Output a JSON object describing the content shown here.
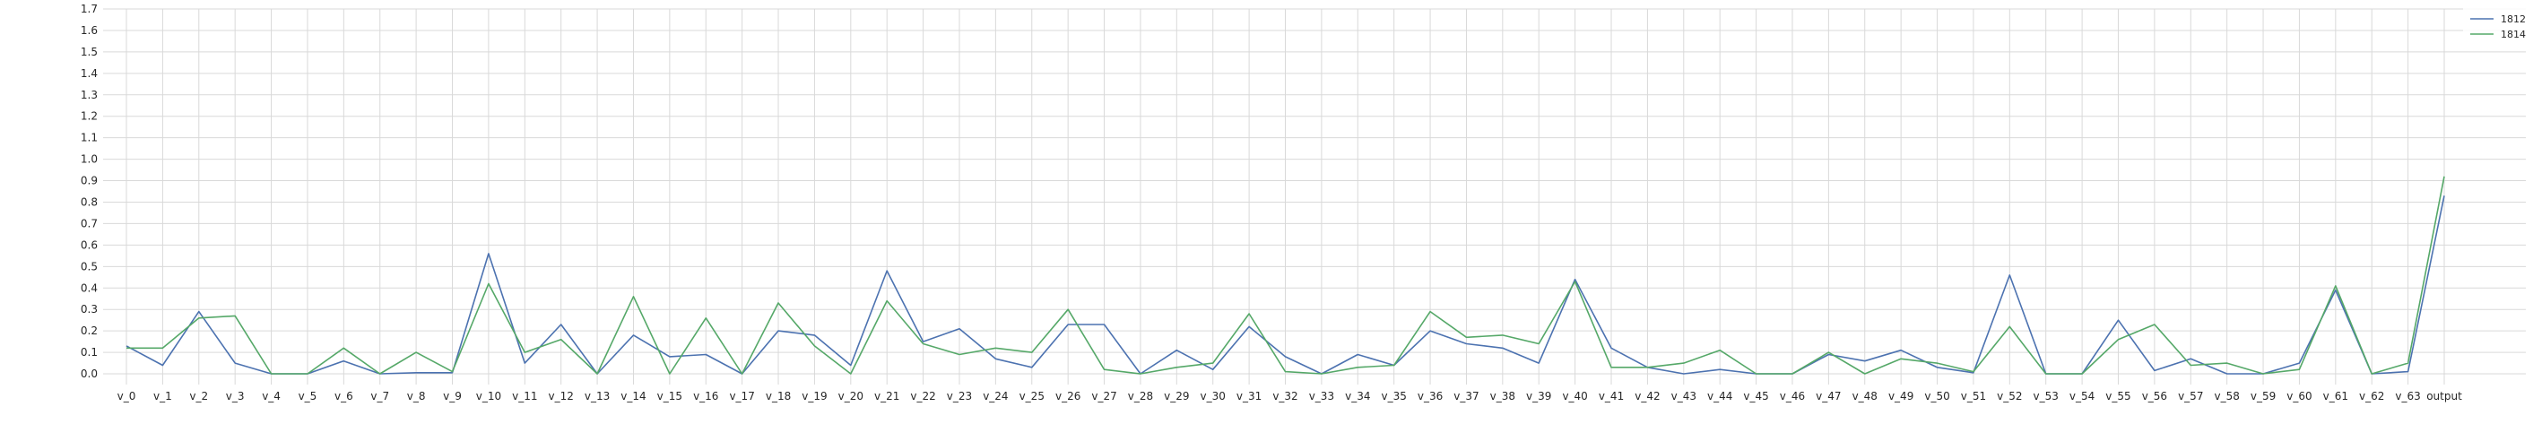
{
  "chart_data": {
    "type": "line",
    "title": "",
    "xlabel": "",
    "ylabel": "",
    "ylim": [
      -0.05,
      1.7
    ],
    "yticks": [
      "0.0",
      "0.1",
      "0.2",
      "0.3",
      "0.4",
      "0.5",
      "0.6",
      "0.7",
      "0.8",
      "0.9",
      "1.0",
      "1.1",
      "1.2",
      "1.3",
      "1.4",
      "1.5",
      "1.6",
      "1.7"
    ],
    "grid": true,
    "legend_position": "top-right",
    "categories": [
      "v_0",
      "v_1",
      "v_2",
      "v_3",
      "v_4",
      "v_5",
      "v_6",
      "v_7",
      "v_8",
      "v_9",
      "v_10",
      "v_11",
      "v_12",
      "v_13",
      "v_14",
      "v_15",
      "v_16",
      "v_17",
      "v_18",
      "v_19",
      "v_20",
      "v_21",
      "v_22",
      "v_23",
      "v_24",
      "v_25",
      "v_26",
      "v_27",
      "v_28",
      "v_29",
      "v_30",
      "v_31",
      "v_32",
      "v_33",
      "v_34",
      "v_35",
      "v_36",
      "v_37",
      "v_38",
      "v_39",
      "v_40",
      "v_41",
      "v_42",
      "v_43",
      "v_44",
      "v_45",
      "v_46",
      "v_47",
      "v_48",
      "v_49",
      "v_50",
      "v_51",
      "v_52",
      "v_53",
      "v_54",
      "v_55",
      "v_56",
      "v_57",
      "v_58",
      "v_59",
      "v_60",
      "v_61",
      "v_62",
      "v_63",
      "output"
    ],
    "series": [
      {
        "name": "1812",
        "color": "#4c72b0",
        "values": [
          0.13,
          0.04,
          0.29,
          0.05,
          0.0,
          0.0,
          0.06,
          0.0,
          0.005,
          0.005,
          0.56,
          0.05,
          0.23,
          0.0,
          0.18,
          0.08,
          0.09,
          0.0,
          0.2,
          0.18,
          0.04,
          0.48,
          0.15,
          0.21,
          0.07,
          0.03,
          0.23,
          0.23,
          0.0,
          0.11,
          0.02,
          0.22,
          0.08,
          0.0,
          0.09,
          0.04,
          0.2,
          0.14,
          0.12,
          0.05,
          0.44,
          0.12,
          0.03,
          0.0,
          0.02,
          0.0,
          0.0,
          0.09,
          0.06,
          0.11,
          0.03,
          0.005,
          0.46,
          0.0,
          0.0,
          0.25,
          0.015,
          0.07,
          0.0,
          0.0,
          0.05,
          0.39,
          0.0,
          0.01,
          0.83
        ]
      },
      {
        "name": "1814",
        "color": "#55a868",
        "values": [
          0.12,
          0.12,
          0.26,
          0.27,
          0.0,
          0.0,
          0.12,
          0.0,
          0.1,
          0.01,
          0.42,
          0.1,
          0.16,
          0.0,
          0.36,
          0.0,
          0.26,
          0.0,
          0.33,
          0.13,
          0.0,
          0.34,
          0.14,
          0.09,
          0.12,
          0.1,
          0.3,
          0.02,
          0.0,
          0.03,
          0.05,
          0.28,
          0.01,
          0.0,
          0.03,
          0.04,
          0.29,
          0.17,
          0.18,
          0.14,
          0.43,
          0.03,
          0.03,
          0.05,
          0.11,
          0.0,
          0.0,
          0.1,
          0.0,
          0.07,
          0.05,
          0.01,
          0.22,
          0.0,
          0.0,
          0.16,
          0.23,
          0.04,
          0.05,
          0.0,
          0.02,
          0.41,
          0.0,
          0.05,
          0.92
        ]
      }
    ]
  }
}
